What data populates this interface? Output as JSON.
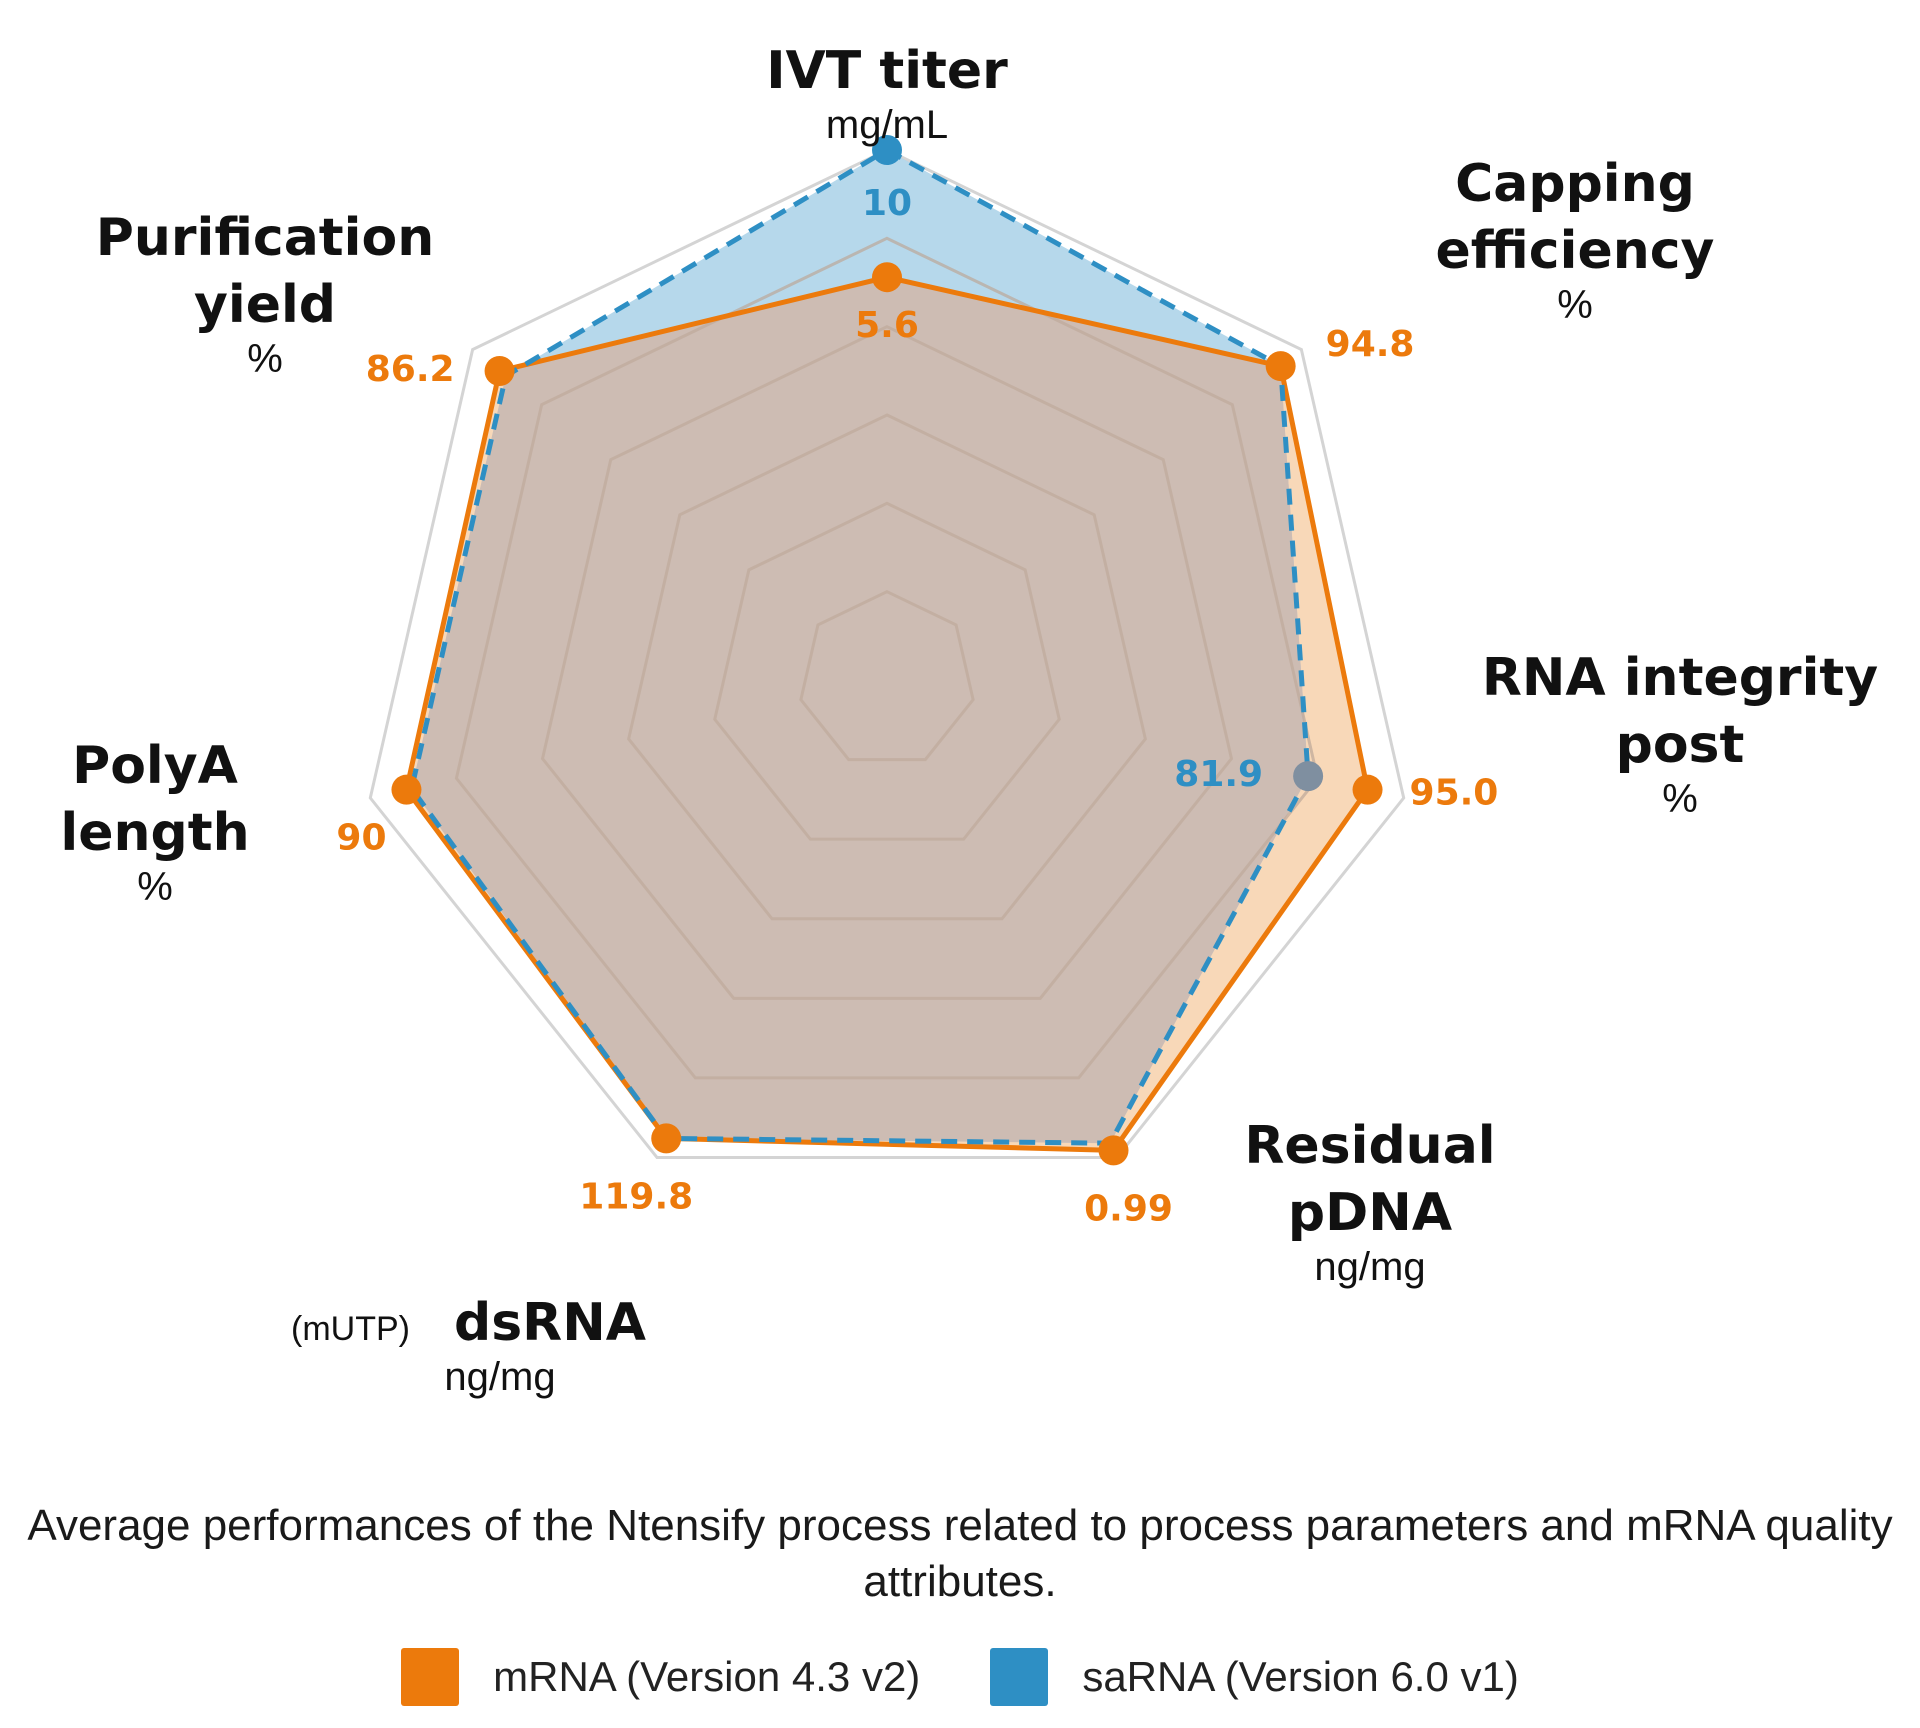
{
  "colors": {
    "mrna": "#ec7a0c",
    "sarna": "#2e8fc4",
    "grid": "#d4d4d4",
    "mrna_fill": "#f7d1ab",
    "sarna_fill": "#a9d1e8",
    "overlap_fill": "#cdbcb3",
    "point_gray": "#7f8fa0"
  },
  "chart_data": {
    "type": "radar",
    "grid_levels": 6,
    "axes": [
      {
        "title_lines": [
          "IVT titer"
        ],
        "unit": "mg/mL"
      },
      {
        "title_lines": [
          "Capping",
          "efficiency"
        ],
        "unit": "%"
      },
      {
        "title_lines": [
          "RNA integrity",
          "post"
        ],
        "unit": "%"
      },
      {
        "title_lines": [
          "Residual",
          "pDNA"
        ],
        "unit": "ng/mg"
      },
      {
        "title_lines": [
          "dsRNA"
        ],
        "prefix": "(mUTP)",
        "unit": "ng/mg"
      },
      {
        "title_lines": [
          "PolyA",
          "length"
        ],
        "unit": "%"
      },
      {
        "title_lines": [
          "Purification",
          "yield"
        ],
        "unit": "%"
      }
    ],
    "value_labels": [
      {
        "series": "mrna",
        "axis": 0,
        "text": "5.6"
      },
      {
        "series": "sarna",
        "axis": 0,
        "text": "10"
      },
      {
        "series": "mrna",
        "axis": 1,
        "text": "94.8"
      },
      {
        "series": "mrna",
        "axis": 2,
        "text": "95.0"
      },
      {
        "series": "sarna",
        "axis": 2,
        "text": "81.9"
      },
      {
        "series": "mrna",
        "axis": 3,
        "text": "0.99"
      },
      {
        "series": "mrna",
        "axis": 4,
        "text": "119.8"
      },
      {
        "series": "mrna",
        "axis": 5,
        "text": "90"
      },
      {
        "series": "mrna",
        "axis": 6,
        "text": "86.2"
      }
    ],
    "series": [
      {
        "id": "mrna",
        "name": "mRNA (Version 4.3 v2)",
        "normalized": [
          0.76,
          0.95,
          0.93,
          0.985,
          0.96,
          0.93,
          0.935
        ]
      },
      {
        "id": "sarna",
        "name": "saRNA (Version 6.0 v1)",
        "normalized": [
          1.0,
          0.95,
          0.815,
          0.97,
          0.96,
          0.92,
          0.92
        ]
      }
    ],
    "caption": "Average performances of the Ntensify process related to process parameters and mRNA quality attributes."
  },
  "legend": [
    {
      "id": "mrna",
      "label": "mRNA (Version 4.3 v2)"
    },
    {
      "id": "sarna",
      "label": "saRNA (Version 6.0 v1)"
    }
  ]
}
